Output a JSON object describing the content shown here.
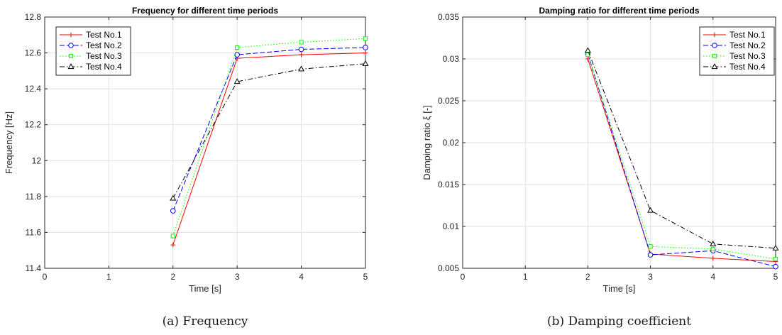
{
  "chart_data": [
    {
      "type": "line",
      "title": "Frequency for different time periods",
      "xlabel": "Time [s]",
      "ylabel": "Frequency [Hz]",
      "xlim": [
        0,
        5
      ],
      "ylim": [
        11.4,
        12.8
      ],
      "xticks": [
        0,
        1,
        2,
        3,
        4,
        5
      ],
      "xtick_labels": [
        "0",
        "1",
        "2",
        "3",
        "4",
        "5"
      ],
      "yticks": [
        11.4,
        11.6,
        11.8,
        12.0,
        12.2,
        12.4,
        12.6,
        12.8
      ],
      "ytick_labels": [
        "11.4",
        "11.6",
        "11.8",
        "12",
        "12.2",
        "12.4",
        "12.6",
        "12.8"
      ],
      "grid": true,
      "legend_position": "top-left",
      "x": [
        2,
        3,
        4,
        5
      ],
      "series": [
        {
          "name": "Test No.1",
          "values": [
            11.53,
            12.57,
            12.59,
            12.6
          ],
          "color": "#ff0000",
          "dash": "solid",
          "marker": "plus"
        },
        {
          "name": "Test No.2",
          "values": [
            11.72,
            12.59,
            12.62,
            12.63
          ],
          "color": "#0000ff",
          "dash": "dashed",
          "marker": "circle"
        },
        {
          "name": "Test No.3",
          "values": [
            11.58,
            12.63,
            12.66,
            12.68
          ],
          "color": "#00ff00",
          "dash": "dotted",
          "marker": "square"
        },
        {
          "name": "Test No.4",
          "values": [
            11.79,
            12.44,
            12.51,
            12.54
          ],
          "color": "#000000",
          "dash": "dashdot",
          "marker": "triangle"
        }
      ],
      "caption": "(a) Frequency"
    },
    {
      "type": "line",
      "title": "Damping ratio for different time periods",
      "xlabel": "Time [s]",
      "ylabel": "Damping ratio ξ [-]",
      "xlim": [
        0,
        5
      ],
      "ylim": [
        0.005,
        0.035
      ],
      "xticks": [
        0,
        1,
        2,
        3,
        4,
        5
      ],
      "xtick_labels": [
        "0",
        "1",
        "2",
        "3",
        "4",
        "5"
      ],
      "yticks": [
        0.005,
        0.01,
        0.015,
        0.02,
        0.025,
        0.03,
        0.035
      ],
      "ytick_labels": [
        "0.005",
        "0.01",
        "0.015",
        "0.02",
        "0.025",
        "0.03",
        "0.035"
      ],
      "grid": true,
      "legend_position": "top-right",
      "x": [
        2,
        3,
        4,
        5
      ],
      "series": [
        {
          "name": "Test No.1",
          "values": [
            0.03,
            0.0067,
            0.0062,
            0.0058
          ],
          "color": "#ff0000",
          "dash": "solid",
          "marker": "plus"
        },
        {
          "name": "Test No.2",
          "values": [
            0.0306,
            0.0066,
            0.0071,
            0.0052
          ],
          "color": "#0000ff",
          "dash": "dashed",
          "marker": "circle"
        },
        {
          "name": "Test No.3",
          "values": [
            0.0305,
            0.0076,
            0.0073,
            0.0061
          ],
          "color": "#00ff00",
          "dash": "dotted",
          "marker": "square"
        },
        {
          "name": "Test No.4",
          "values": [
            0.031,
            0.0119,
            0.0079,
            0.0074
          ],
          "color": "#000000",
          "dash": "dashdot",
          "marker": "triangle"
        }
      ],
      "caption": "(b) Damping coefficient"
    }
  ]
}
